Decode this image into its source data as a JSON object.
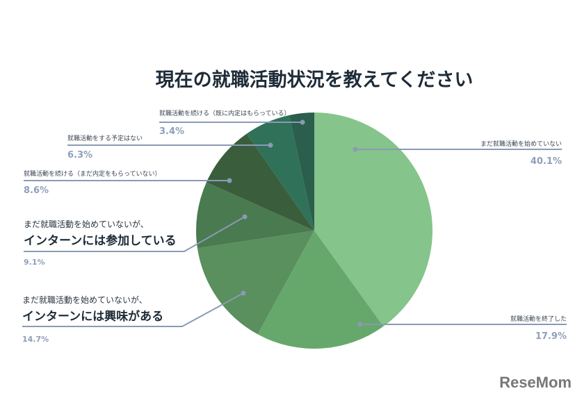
{
  "chart_data": {
    "type": "pie",
    "title": "現在の就職活動状況を教えてください",
    "slices": [
      {
        "label": "まだ就職活動を始めていない",
        "value": 40.1,
        "pct_text": "40.1%",
        "color": "#85c48a"
      },
      {
        "label": "就職活動を終了した",
        "value": 17.9,
        "pct_text": "17.9%",
        "color": "#66a86c"
      },
      {
        "label_line1": "まだ就職活動を始めていないが、",
        "label_line2": "インターンには興味がある",
        "value": 14.7,
        "pct_text": "14.7%",
        "color": "#5a8f5e"
      },
      {
        "label_line1": "まだ就職活動を始めていないが、",
        "label_line2": "インターンには参加している",
        "value": 9.1,
        "pct_text": "9.1%",
        "color": "#4a7a4f"
      },
      {
        "label": "就職活動を続ける（まだ内定をもらっていない）",
        "value": 8.6,
        "pct_text": "8.6%",
        "color": "#3a5e3c"
      },
      {
        "label": "就職活動をする予定はない",
        "value": 6.3,
        "pct_text": "6.3%",
        "color": "#307159"
      },
      {
        "label": "就職活動を続ける（既に内定はもらっている）",
        "value": 3.4,
        "pct_text": "3.4%",
        "color": "#2b5e4c"
      }
    ],
    "start": "top",
    "direction": "clockwise",
    "legend": "none"
  },
  "leader_color": "#8a9ab5",
  "watermark": "ReseMom"
}
